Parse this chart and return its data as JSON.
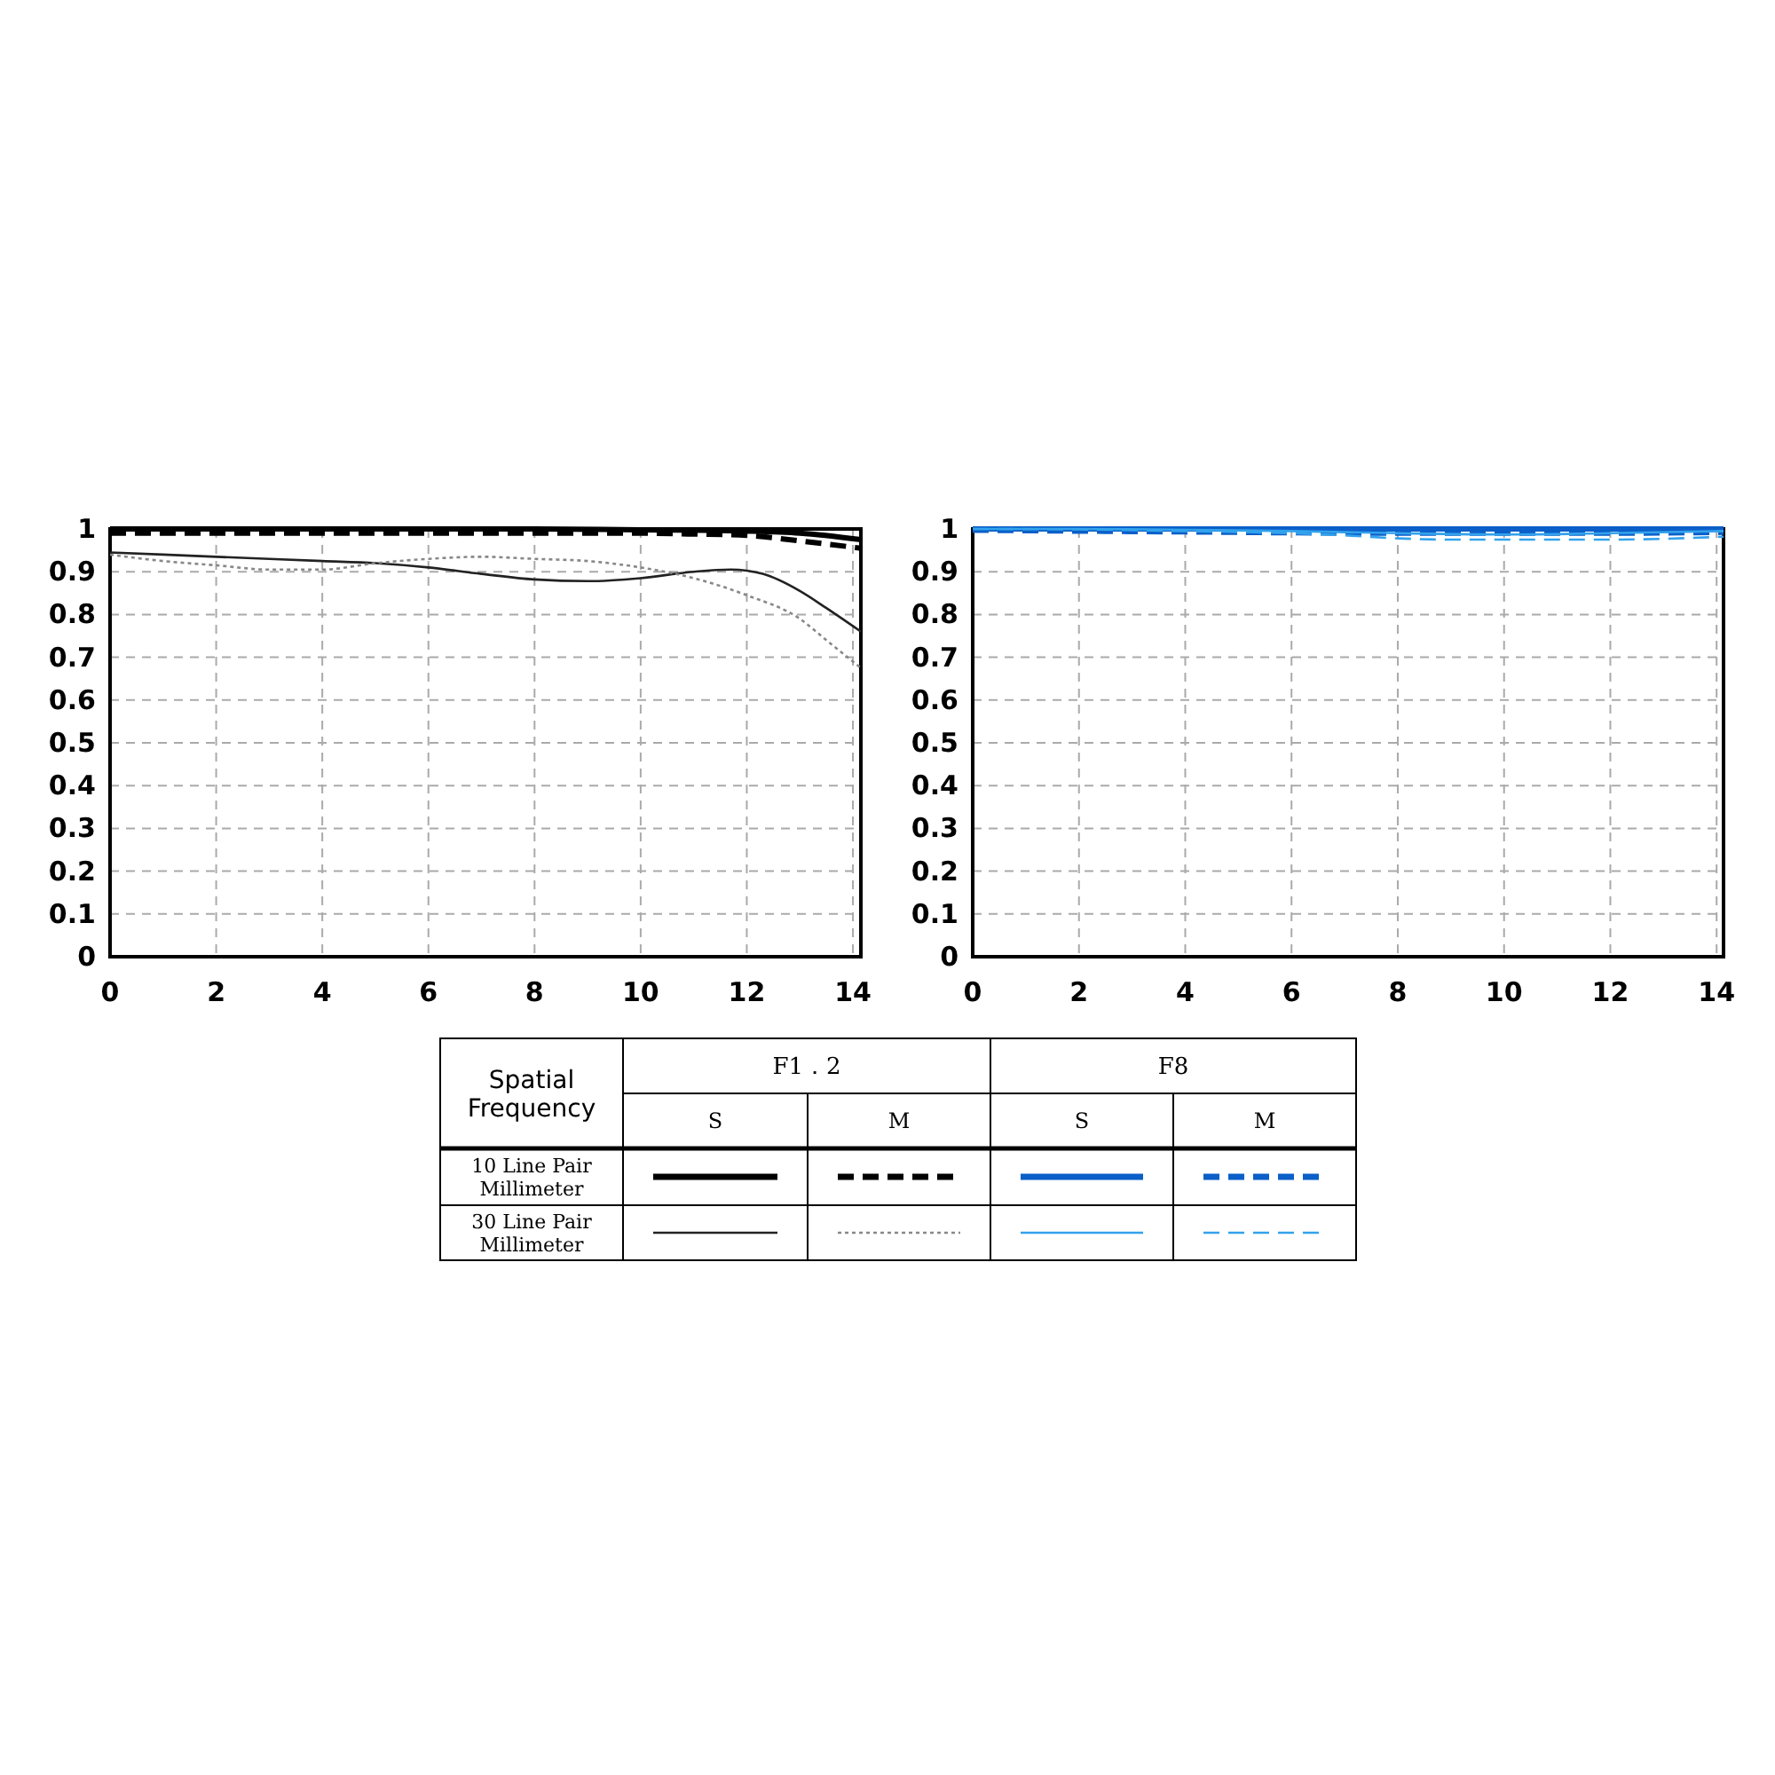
{
  "chart_data": [
    {
      "type": "line",
      "xlim": [
        0,
        14.15
      ],
      "ylim": [
        0,
        1
      ],
      "xticks": [
        0,
        2,
        4,
        6,
        8,
        10,
        12,
        14
      ],
      "yticks": [
        0,
        0.1,
        0.2,
        0.3,
        0.4,
        0.5,
        0.6,
        0.7,
        0.8,
        0.9,
        1
      ],
      "grid": true,
      "series": [
        {
          "color": "#000000",
          "line_style": "solid",
          "x": [
            0,
            2,
            4,
            6,
            8,
            10,
            11,
            12,
            13,
            14.15
          ],
          "values": [
            1,
            1,
            1,
            1,
            1,
            0.998,
            0.997,
            0.995,
            0.99,
            0.975
          ]
        },
        {
          "color": "#000000",
          "line_style": "dashed",
          "x": [
            0,
            2,
            4,
            6,
            8,
            10,
            11,
            12,
            13,
            14.15
          ],
          "values": [
            0.99,
            0.99,
            0.99,
            0.99,
            0.99,
            0.99,
            0.988,
            0.985,
            0.972,
            0.955
          ]
        },
        {
          "color": "#222222",
          "line_style": "solid",
          "x": [
            0,
            2,
            4,
            5,
            6,
            7,
            8,
            9,
            10,
            11,
            11.7,
            12.3,
            13,
            13.5,
            14.15
          ],
          "values": [
            0.945,
            0.935,
            0.925,
            0.92,
            0.91,
            0.895,
            0.882,
            0.878,
            0.885,
            0.9,
            0.905,
            0.895,
            0.855,
            0.815,
            0.76
          ]
        },
        {
          "color": "#888888",
          "line_style": "dotted",
          "x": [
            0,
            1,
            2,
            3,
            4,
            5,
            6,
            7,
            8,
            9,
            10,
            11,
            12,
            13,
            13.5,
            14.15
          ],
          "values": [
            0.94,
            0.925,
            0.915,
            0.905,
            0.905,
            0.92,
            0.93,
            0.935,
            0.93,
            0.925,
            0.91,
            0.885,
            0.845,
            0.79,
            0.74,
            0.675
          ]
        }
      ]
    },
    {
      "type": "line",
      "xlim": [
        0,
        14.13
      ],
      "ylim": [
        0,
        1
      ],
      "xticks": [
        0,
        2,
        4,
        6,
        8,
        10,
        12,
        14
      ],
      "yticks": [
        0,
        0.1,
        0.2,
        0.3,
        0.4,
        0.5,
        0.6,
        0.7,
        0.8,
        0.9,
        1
      ],
      "grid": true,
      "series": [
        {
          "color": "#0a5fc8",
          "line_style": "solid",
          "x": [
            0,
            4,
            8,
            12,
            14.13
          ],
          "values": [
            1,
            1,
            1,
            1,
            1
          ]
        },
        {
          "color": "#0a5fc8",
          "line_style": "dashed",
          "x": [
            0,
            4,
            8,
            12,
            14.13
          ],
          "values": [
            0.997,
            0.993,
            0.99,
            0.99,
            0.992
          ]
        },
        {
          "color": "#33a2ec",
          "line_style": "solid",
          "x": [
            0,
            2,
            4,
            6,
            8,
            10,
            12,
            14.13
          ],
          "values": [
            1,
            1,
            0.998,
            0.995,
            0.99,
            0.987,
            0.99,
            0.995
          ]
        },
        {
          "color": "#33a2ec",
          "line_style": "dashed",
          "x": [
            0,
            2,
            4,
            6,
            7,
            8,
            9,
            10,
            12,
            13,
            14.13
          ],
          "values": [
            1,
            0.999,
            0.995,
            0.99,
            0.985,
            0.978,
            0.975,
            0.975,
            0.975,
            0.977,
            0.982
          ]
        }
      ]
    },
    {
      "type": "other",
      "annotations": [
        "Spatial Frequency",
        "F1．2",
        "F8",
        "S",
        "M",
        "S",
        "M",
        "10 Line Pair Millimeter",
        "30 Line Pair Millimeter"
      ]
    }
  ]
}
